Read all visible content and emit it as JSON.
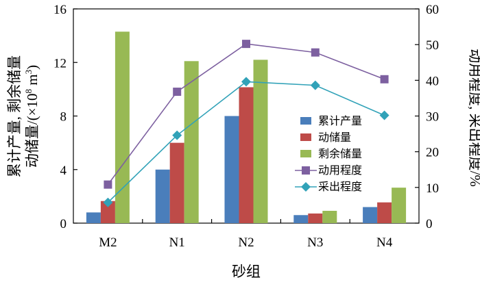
{
  "chart_data": {
    "type": "bar+line",
    "categories": [
      "M2",
      "N1",
      "N2",
      "N3",
      "N4"
    ],
    "bar_series": [
      {
        "name": "累计产量",
        "color": "#4A7EBB",
        "values": [
          0.8,
          4.0,
          8.0,
          0.6,
          1.2
        ]
      },
      {
        "name": "动储量",
        "color": "#BE4B48",
        "values": [
          1.65,
          6.0,
          10.15,
          0.72,
          1.55
        ]
      },
      {
        "name": "剩余储量",
        "color": "#98B954",
        "values": [
          14.3,
          12.1,
          12.2,
          0.92,
          2.65
        ]
      }
    ],
    "line_series": [
      {
        "name": "动用程度",
        "color": "#7D60A0",
        "marker": "square",
        "values": [
          10.8,
          36.8,
          50.2,
          47.8,
          40.3
        ]
      },
      {
        "name": "采出程度",
        "color": "#31A2B8",
        "marker": "diamond",
        "values": [
          5.8,
          24.6,
          39.6,
          38.6,
          30.2
        ]
      }
    ],
    "ylim_left": [
      0,
      16
    ],
    "yticks_left": [
      "0",
      "4",
      "8",
      "12",
      "16"
    ],
    "ylim_right": [
      0,
      60
    ],
    "yticks_right": [
      "0",
      "10",
      "20",
      "30",
      "40",
      "50",
      "60"
    ],
    "xlabel": "砂组",
    "ylabel_left_line1": "累计产量, 剩余储量",
    "ylabel_left_line2_prefix": "动储量/(×10",
    "ylabel_left_exp1": "8",
    "ylabel_left_mid": " m",
    "ylabel_left_exp2": "3",
    "ylabel_left_suffix": ")",
    "ylabel_right": "动用程度, 采出程度/%",
    "legend_position": "center-right"
  }
}
